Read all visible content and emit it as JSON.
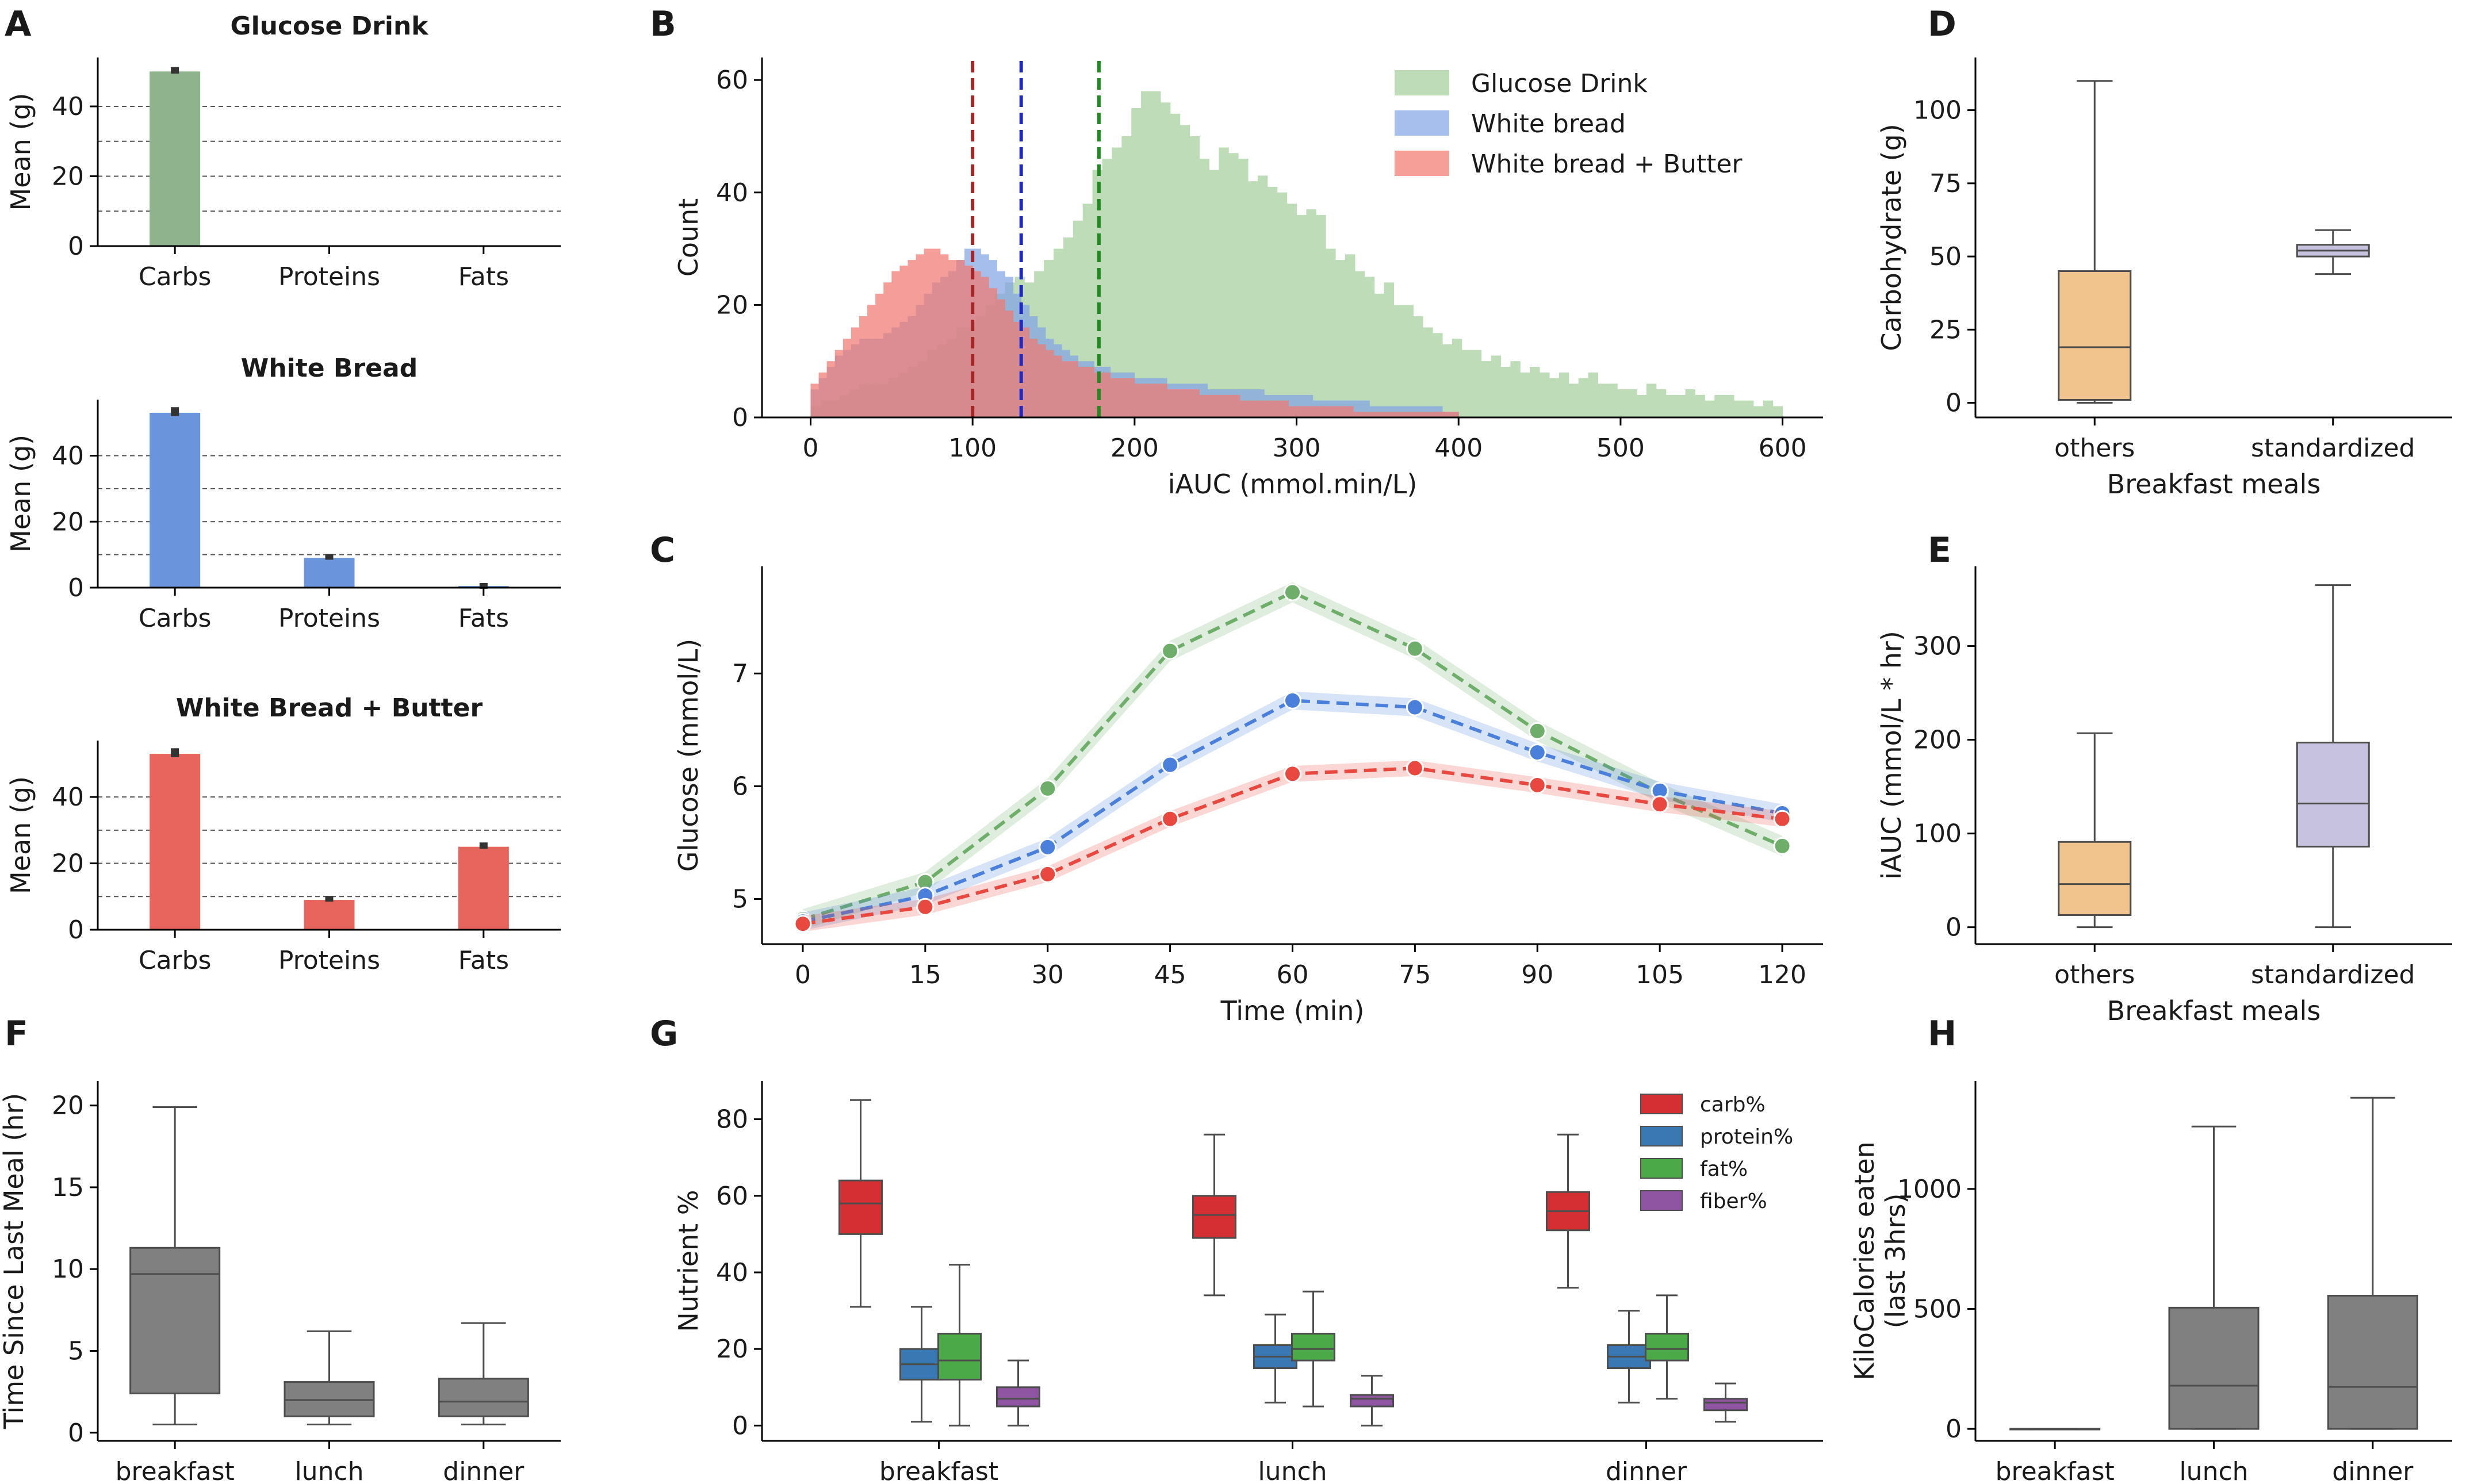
{
  "chart_data": [
    {
      "id": "A",
      "type": "bar",
      "panel_label": "A",
      "subplots": [
        {
          "title": "Glucose Drink",
          "categories": [
            "Carbs",
            "Proteins",
            "Fats"
          ],
          "values": [
            50,
            0,
            0
          ],
          "errors": [
            0.6,
            0,
            0
          ],
          "color": "#8fb38c",
          "ylabel": "Mean (g)",
          "ylim": [
            0,
            54
          ],
          "yticks": [
            0,
            20,
            40
          ],
          "gridlines": [
            10,
            20,
            30,
            40
          ]
        },
        {
          "title": "White Bread",
          "categories": [
            "Carbs",
            "Proteins",
            "Fats"
          ],
          "values": [
            53,
            9,
            0.5
          ],
          "errors": [
            1,
            0.5,
            0.2
          ],
          "color": "#6a95dc",
          "ylabel": "Mean (g)",
          "ylim": [
            0,
            57
          ],
          "yticks": [
            0,
            20,
            40
          ],
          "gridlines": [
            10,
            20,
            30,
            40
          ]
        },
        {
          "title": "White Bread + Butter",
          "categories": [
            "Carbs",
            "Proteins",
            "Fats"
          ],
          "values": [
            53,
            9,
            25
          ],
          "errors": [
            1,
            0.5,
            0.6
          ],
          "color": "#e8655e",
          "ylabel": "Mean (g)",
          "ylim": [
            0,
            57
          ],
          "yticks": [
            0,
            20,
            40
          ],
          "gridlines": [
            10,
            20,
            30,
            40
          ]
        }
      ]
    },
    {
      "id": "B",
      "type": "histogram",
      "panel_label": "B",
      "xlabel": "iAUC (mmol.min/L)",
      "ylabel": "Count",
      "xlim": [
        -30,
        625
      ],
      "ylim": [
        0,
        64
      ],
      "xticks": [
        0,
        100,
        200,
        300,
        400,
        500,
        600
      ],
      "yticks": [
        0,
        20,
        40,
        60
      ],
      "series": [
        {
          "name": "Glucose Drink",
          "color": "#a5cf9c",
          "bin_start": 0,
          "bin_width": 6,
          "counts": [
            2,
            3,
            3,
            4,
            5,
            6,
            6,
            6,
            7,
            8,
            9,
            10,
            12,
            13,
            14,
            16,
            16,
            18,
            20,
            22,
            24,
            25,
            24,
            26,
            28,
            30,
            32,
            35,
            38,
            44,
            46,
            48,
            50,
            55,
            58,
            58,
            56,
            54,
            52,
            50,
            46,
            44,
            48,
            47,
            46,
            42,
            43,
            41,
            40,
            38,
            36,
            37,
            36,
            30,
            28,
            29,
            26,
            25,
            22,
            24,
            20,
            20,
            18,
            16,
            15,
            13,
            14,
            12,
            12,
            10,
            11,
            9,
            10,
            8,
            9,
            8,
            7,
            8,
            6,
            7,
            8,
            6,
            6,
            5,
            5,
            4,
            6,
            5,
            4,
            4,
            5,
            4,
            3,
            4,
            4,
            3,
            3,
            2,
            3,
            2
          ]
        },
        {
          "name": "White bread",
          "color": "#84a6e6",
          "bin_start": 0,
          "bin_width": 5,
          "counts": [
            5,
            7,
            9,
            11,
            12,
            13,
            14,
            14,
            14,
            15,
            16,
            17,
            18,
            20,
            22,
            24,
            25,
            26,
            28,
            30,
            30,
            29,
            28,
            26,
            25,
            22,
            20,
            18,
            16,
            14,
            13,
            12,
            11,
            10,
            10,
            9,
            9,
            8,
            8,
            8,
            7,
            7,
            7,
            7,
            6,
            6,
            6,
            6,
            6,
            5,
            5,
            5,
            5,
            5,
            5,
            5,
            4,
            4,
            4,
            4,
            4,
            4,
            3,
            3,
            3,
            3,
            3,
            3,
            3,
            2,
            2,
            2,
            2,
            2,
            2,
            2,
            2,
            2,
            1,
            1
          ]
        },
        {
          "name": "White bread + Butter",
          "color": "#f27a72",
          "bin_start": 0,
          "bin_width": 5,
          "counts": [
            6,
            8,
            10,
            12,
            14,
            16,
            18,
            20,
            22,
            24,
            26,
            27,
            28,
            29,
            30,
            30,
            29,
            28,
            28,
            27,
            26,
            25,
            23,
            21,
            19,
            17,
            16,
            14,
            13,
            12,
            11,
            10,
            10,
            9,
            9,
            8,
            8,
            7,
            7,
            7,
            6,
            6,
            6,
            6,
            5,
            5,
            5,
            5,
            4,
            4,
            4,
            4,
            4,
            3,
            3,
            3,
            3,
            3,
            3,
            2,
            2,
            2,
            2,
            2,
            2,
            2,
            2,
            1,
            1,
            1,
            1,
            1,
            1,
            1,
            1,
            1,
            1,
            1,
            1,
            1
          ]
        }
      ],
      "vlines": [
        {
          "x": 100,
          "color": "#a52626"
        },
        {
          "x": 130,
          "color": "#1f29c7"
        },
        {
          "x": 178,
          "color": "#1f8a1f"
        }
      ]
    },
    {
      "id": "C",
      "type": "line",
      "panel_label": "C",
      "xlabel": "Time (min)",
      "ylabel": "Glucose (mmol/L)",
      "x": [
        0,
        15,
        30,
        45,
        60,
        75,
        90,
        105,
        120
      ],
      "xlim": [
        -5,
        125
      ],
      "ylim": [
        4.6,
        7.95
      ],
      "yticks": [
        5,
        6,
        7
      ],
      "series": [
        {
          "name": "Glucose Drink",
          "color": "#6fae6a",
          "band": 0.09,
          "values": [
            4.82,
            5.15,
            5.98,
            7.2,
            7.72,
            7.22,
            6.49,
            5.94,
            5.47
          ]
        },
        {
          "name": "White bread",
          "color": "#4a7fdc",
          "band": 0.08,
          "values": [
            4.8,
            5.03,
            5.46,
            6.19,
            6.76,
            6.7,
            6.3,
            5.96,
            5.76
          ]
        },
        {
          "name": "White bread + Butter",
          "color": "#e8483f",
          "band": 0.07,
          "values": [
            4.78,
            4.93,
            5.22,
            5.71,
            6.11,
            6.16,
            6.01,
            5.84,
            5.71
          ]
        }
      ]
    },
    {
      "id": "D",
      "type": "box",
      "panel_label": "D",
      "xlabel": "Breakfast meals",
      "ylabel": "Carbohydrate (g)",
      "categories": [
        "others",
        "standardized"
      ],
      "ylim": [
        -5,
        118
      ],
      "yticks": [
        0,
        25,
        50,
        75,
        100
      ],
      "boxes": [
        {
          "whislo": 0,
          "q1": 1,
          "med": 19,
          "q3": 45,
          "whishi": 110,
          "color": "#f1c48e"
        },
        {
          "whislo": 44,
          "q1": 50,
          "med": 52,
          "q3": 54,
          "whishi": 59,
          "color": "#c7c2df"
        }
      ]
    },
    {
      "id": "E",
      "type": "box",
      "panel_label": "E",
      "xlabel": "Breakfast meals",
      "ylabel": "iAUC (mmol/L * hr)",
      "categories": [
        "others",
        "standardized"
      ],
      "ylim": [
        -18,
        385
      ],
      "yticks": [
        0,
        100,
        200,
        300
      ],
      "boxes": [
        {
          "whislo": 0,
          "q1": 13,
          "med": 46,
          "q3": 91,
          "whishi": 207,
          "color": "#f1c48e"
        },
        {
          "whislo": 0,
          "q1": 86,
          "med": 132,
          "q3": 197,
          "whishi": 365,
          "color": "#c7c2df"
        }
      ]
    },
    {
      "id": "F",
      "type": "box",
      "panel_label": "F",
      "xlabel": "",
      "ylabel": "Time Since Last Meal (hr)",
      "categories": [
        "breakfast",
        "lunch",
        "dinner"
      ],
      "ylim": [
        -0.5,
        21.5
      ],
      "yticks": [
        0,
        5,
        10,
        15,
        20
      ],
      "boxes": [
        {
          "whislo": 0.5,
          "q1": 2.4,
          "med": 9.7,
          "q3": 11.3,
          "whishi": 19.9,
          "color": "#808080"
        },
        {
          "whislo": 0.5,
          "q1": 1.0,
          "med": 2.0,
          "q3": 3.1,
          "whishi": 6.2,
          "color": "#808080"
        },
        {
          "whislo": 0.5,
          "q1": 1.0,
          "med": 1.9,
          "q3": 3.3,
          "whishi": 6.7,
          "color": "#808080"
        }
      ]
    },
    {
      "id": "G",
      "type": "box",
      "panel_label": "G",
      "xlabel": "",
      "ylabel": "Nutrient %",
      "categories": [
        "breakfast",
        "lunch",
        "dinner"
      ],
      "ylim": [
        -4,
        90
      ],
      "yticks": [
        0,
        20,
        40,
        60,
        80
      ],
      "legend": [
        {
          "name": "carb%",
          "color": "#d62f33"
        },
        {
          "name": "protein%",
          "color": "#3a78b4"
        },
        {
          "name": "fat%",
          "color": "#4ca948"
        },
        {
          "name": "fiber%",
          "color": "#9055a2"
        }
      ],
      "groups": [
        [
          {
            "whislo": 31,
            "q1": 50,
            "med": 58,
            "q3": 64,
            "whishi": 85
          },
          {
            "whislo": 1,
            "q1": 12,
            "med": 16,
            "q3": 20,
            "whishi": 31
          },
          {
            "whislo": 0,
            "q1": 12,
            "med": 17,
            "q3": 24,
            "whishi": 42
          },
          {
            "whislo": 0,
            "q1": 5,
            "med": 7,
            "q3": 10,
            "whishi": 17
          }
        ],
        [
          {
            "whislo": 34,
            "q1": 49,
            "med": 55,
            "q3": 60,
            "whishi": 76
          },
          {
            "whislo": 6,
            "q1": 15,
            "med": 18,
            "q3": 21,
            "whishi": 29
          },
          {
            "whislo": 5,
            "q1": 17,
            "med": 20,
            "q3": 24,
            "whishi": 35
          },
          {
            "whislo": 0,
            "q1": 5,
            "med": 7,
            "q3": 8,
            "whishi": 13
          }
        ],
        [
          {
            "whislo": 36,
            "q1": 51,
            "med": 56,
            "q3": 61,
            "whishi": 76
          },
          {
            "whislo": 6,
            "q1": 15,
            "med": 18,
            "q3": 21,
            "whishi": 30
          },
          {
            "whislo": 7,
            "q1": 17,
            "med": 20,
            "q3": 24,
            "whishi": 34
          },
          {
            "whislo": 1,
            "q1": 4,
            "med": 6,
            "q3": 7,
            "whishi": 11
          }
        ]
      ]
    },
    {
      "id": "H",
      "type": "box",
      "panel_label": "H",
      "xlabel": "",
      "ylabel": "KiloCalories eaten\n(last 3hrs)",
      "categories": [
        "breakfast",
        "lunch",
        "dinner"
      ],
      "ylim": [
        -50,
        1450
      ],
      "yticks": [
        0,
        500,
        1000
      ],
      "boxes": [
        {
          "whislo": 0,
          "q1": 0,
          "med": 0,
          "q3": 0,
          "whishi": 0,
          "color": "#808080"
        },
        {
          "whislo": 0,
          "q1": 0,
          "med": 180,
          "q3": 505,
          "whishi": 1260,
          "color": "#808080"
        },
        {
          "whislo": 0,
          "q1": 0,
          "med": 175,
          "q3": 555,
          "whishi": 1380,
          "color": "#808080"
        }
      ]
    }
  ]
}
